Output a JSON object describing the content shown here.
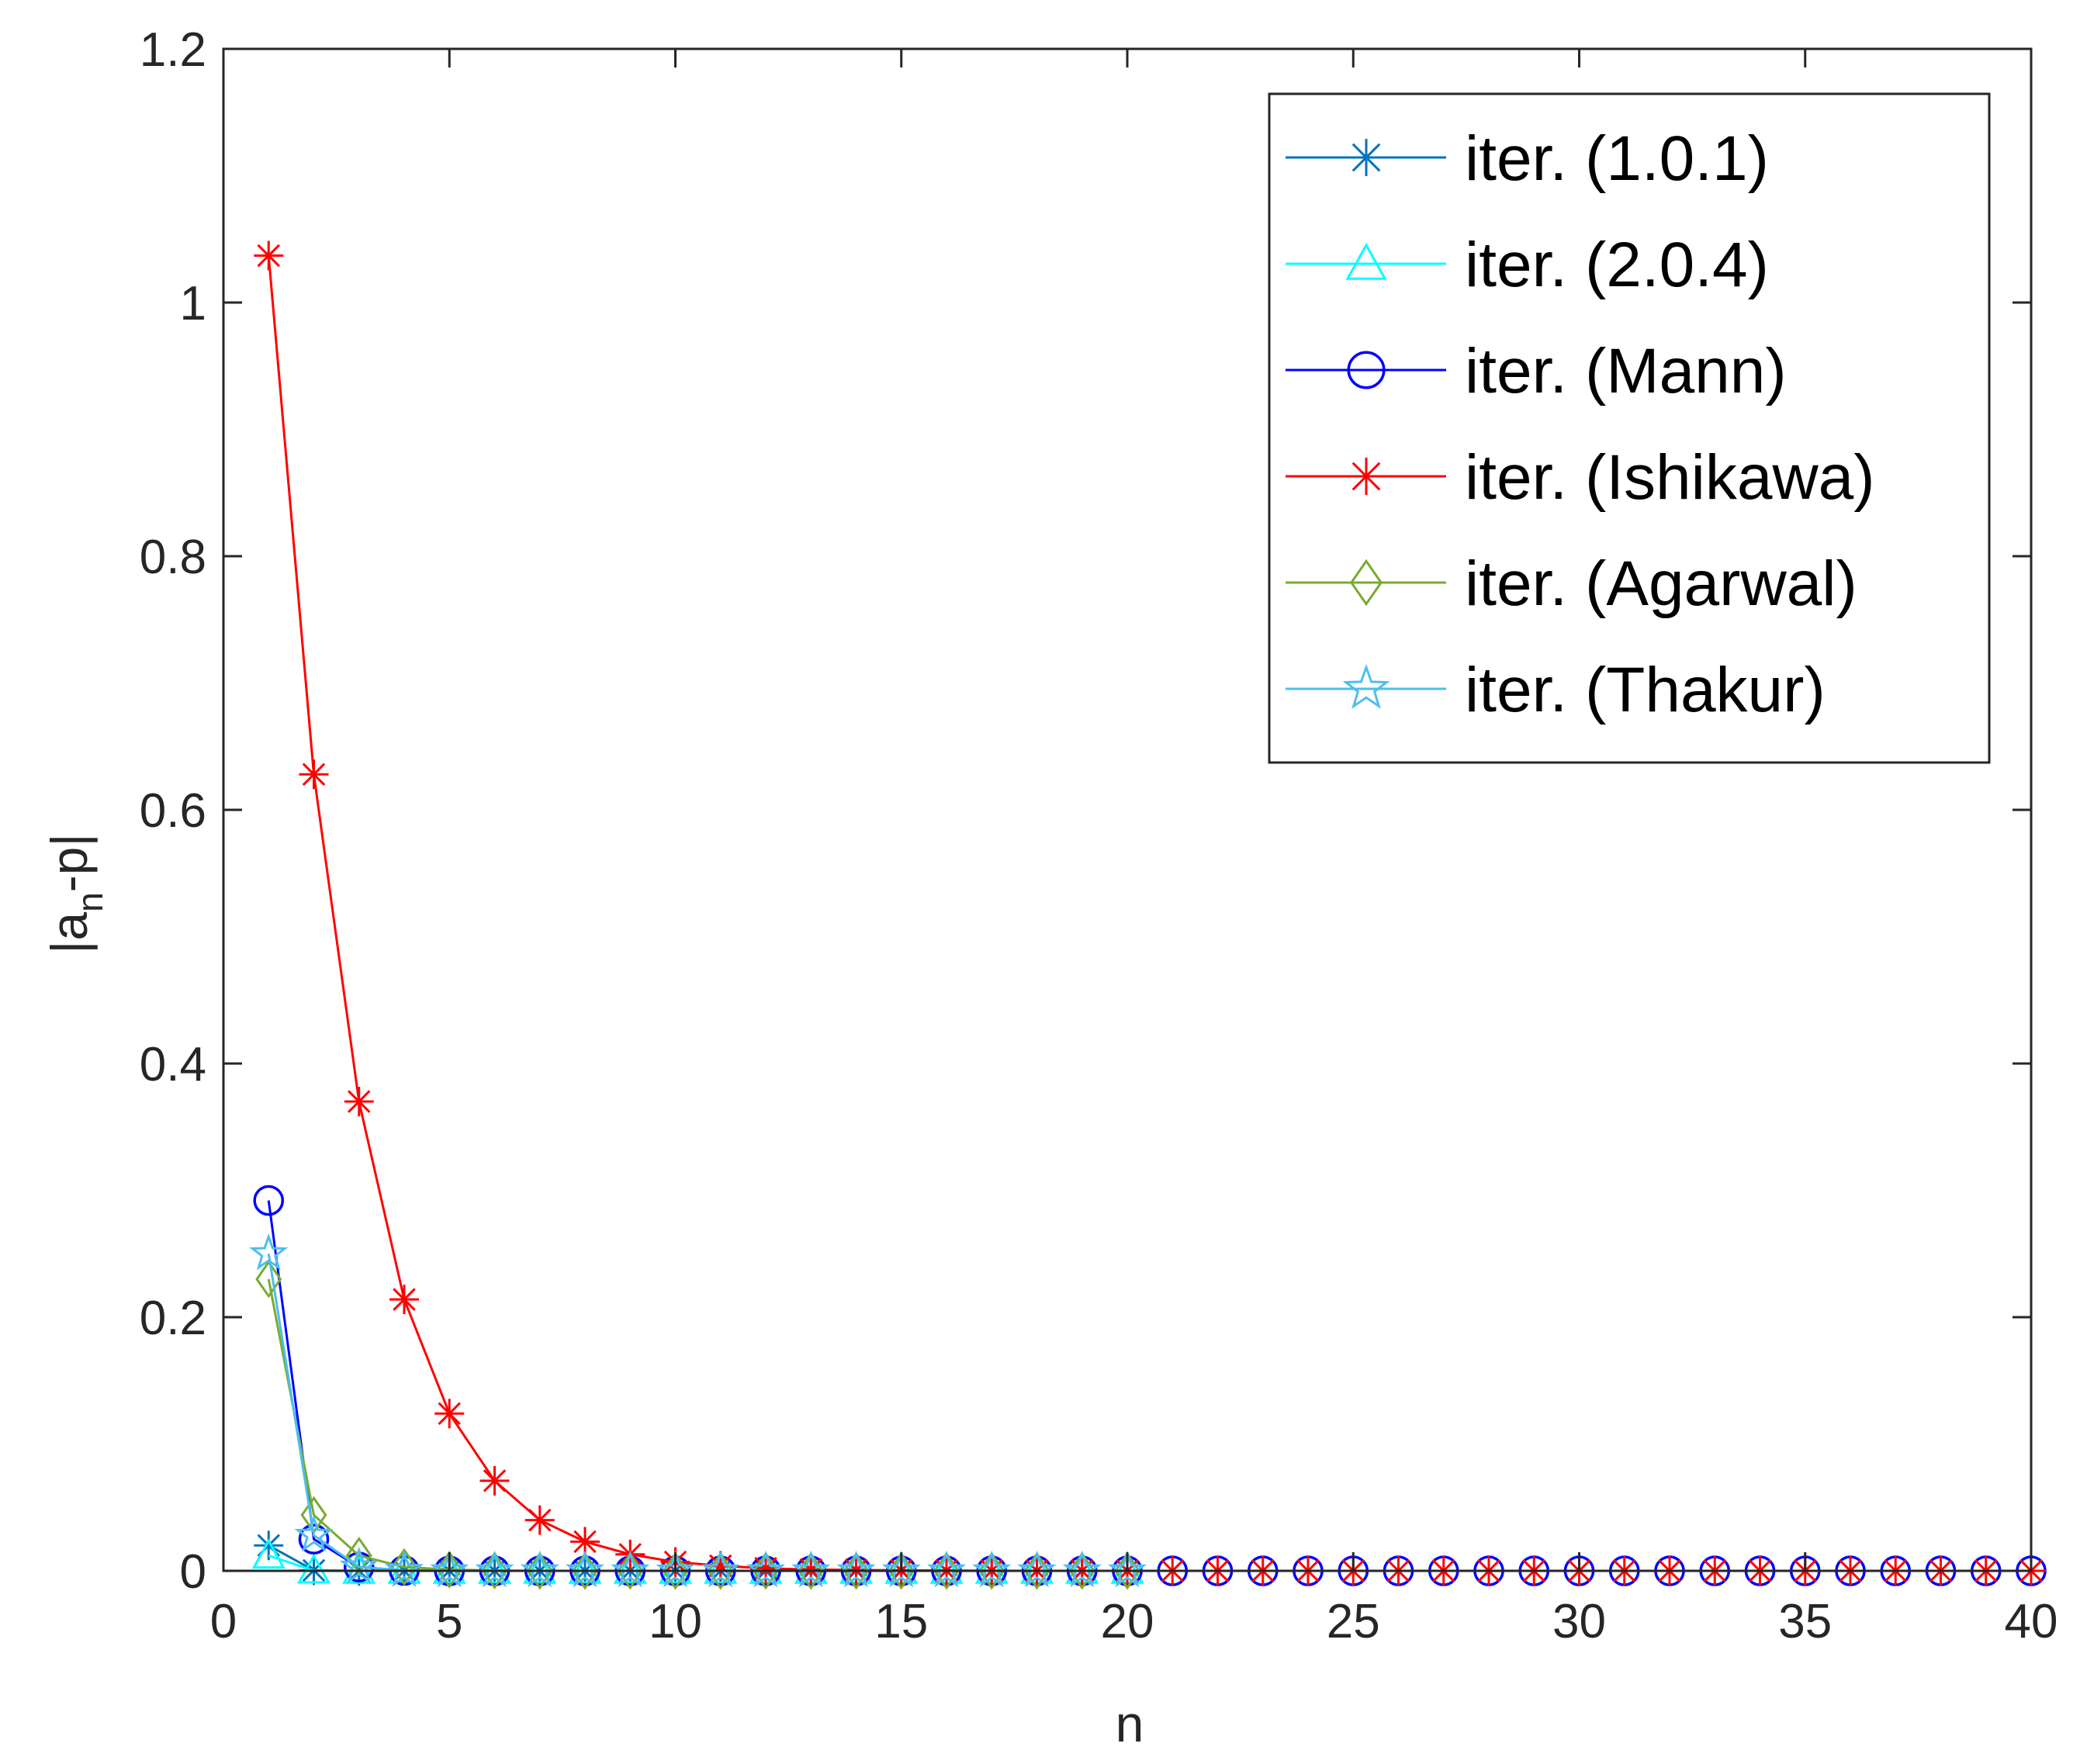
{
  "chart_data": {
    "type": "line",
    "xlabel": "n",
    "ylabel_main": "|a",
    "ylabel_sub": "n",
    "ylabel_tail": "-p|",
    "xlim": [
      0,
      40
    ],
    "ylim": [
      0,
      1.2
    ],
    "xticks": [
      0,
      5,
      10,
      15,
      20,
      25,
      30,
      35,
      40
    ],
    "xtick_labels": [
      "0",
      "5",
      "10",
      "15",
      "20",
      "25",
      "30",
      "35",
      "40"
    ],
    "yticks": [
      0,
      0.2,
      0.4,
      0.6,
      0.8,
      1.0,
      1.2
    ],
    "ytick_labels": [
      "0",
      "0.2",
      "0.4",
      "0.6",
      "0.8",
      "1",
      "1.2"
    ],
    "grid": false,
    "legend_position": "top-right",
    "series": [
      {
        "name": "iter. (1.0.1)",
        "color": "#0072BD",
        "marker": "asterisk",
        "x": [
          1,
          2,
          3,
          4,
          5,
          6,
          7,
          8,
          9,
          10,
          11,
          12,
          13,
          14,
          15,
          16,
          17,
          18,
          19,
          20
        ],
        "y": [
          0.02,
          0.0004,
          0,
          0,
          0,
          0,
          0,
          0,
          0,
          0,
          0,
          0,
          0,
          0,
          0,
          0,
          0,
          0,
          0,
          0
        ]
      },
      {
        "name": "iter. (2.0.4)",
        "color": "#00FFFF",
        "marker": "triangle",
        "x": [
          1,
          2,
          3,
          4,
          5,
          6,
          7,
          8,
          9,
          10,
          11,
          12,
          13,
          14,
          15,
          16,
          17,
          18,
          19,
          20
        ],
        "y": [
          0.012,
          0.0002,
          0,
          0,
          0,
          0,
          0,
          0,
          0,
          0,
          0,
          0,
          0,
          0,
          0,
          0,
          0,
          0,
          0,
          0
        ]
      },
      {
        "name": "iter. (Mann)",
        "color": "#0000FF",
        "marker": "circle",
        "x": [
          1,
          2,
          3,
          4,
          5,
          6,
          7,
          8,
          9,
          10,
          11,
          12,
          13,
          14,
          15,
          16,
          17,
          18,
          19,
          20,
          21,
          22,
          23,
          24,
          25,
          26,
          27,
          28,
          29,
          30,
          31,
          32,
          33,
          34,
          35,
          36,
          37,
          38,
          39,
          40
        ],
        "y": [
          0.292,
          0.025,
          0.003,
          0.0003,
          0,
          0,
          0,
          0,
          0,
          0,
          0,
          0,
          0,
          0,
          0,
          0,
          0,
          0,
          0,
          0,
          0,
          0,
          0,
          0,
          0,
          0,
          0,
          0,
          0,
          0,
          0,
          0,
          0,
          0,
          0,
          0,
          0,
          0,
          0,
          0
        ]
      },
      {
        "name": "iter. (Ishikawa)",
        "color": "#FF0000",
        "marker": "asterisk",
        "x": [
          1,
          2,
          3,
          4,
          5,
          6,
          7,
          8,
          9,
          10,
          11,
          12,
          13,
          14,
          15,
          16,
          17,
          18,
          19,
          20,
          21,
          22,
          23,
          24,
          25,
          26,
          27,
          28,
          29,
          30,
          31,
          32,
          33,
          34,
          35,
          36,
          37,
          38,
          39,
          40
        ],
        "y": [
          1.037,
          0.628,
          0.37,
          0.214,
          0.124,
          0.071,
          0.04,
          0.023,
          0.013,
          0.007,
          0.004,
          0.002,
          0.001,
          0.0007,
          0.0004,
          0.0002,
          0.0001,
          0,
          0,
          0,
          0,
          0,
          0,
          0,
          0,
          0,
          0,
          0,
          0,
          0,
          0,
          0,
          0,
          0,
          0,
          0,
          0,
          0,
          0,
          0
        ]
      },
      {
        "name": "iter. (Agarwal)",
        "color": "#77AC30",
        "marker": "diamond",
        "x": [
          1,
          2,
          3,
          4,
          5,
          6,
          7,
          8,
          9,
          10,
          11,
          12,
          13,
          14,
          15,
          16,
          17,
          18,
          19,
          20
        ],
        "y": [
          0.23,
          0.044,
          0.012,
          0.003,
          0.001,
          0.0003,
          0,
          0,
          0,
          0,
          0,
          0,
          0,
          0,
          0,
          0,
          0,
          0,
          0,
          0
        ]
      },
      {
        "name": "iter. (Thakur)",
        "color": "#4DBEEE",
        "marker": "pentagram",
        "x": [
          1,
          2,
          3,
          4,
          5,
          6,
          7,
          8,
          9,
          10,
          11,
          12,
          13,
          14,
          15,
          16,
          17,
          18,
          19,
          20
        ],
        "y": [
          0.25,
          0.028,
          0.003,
          0.0003,
          0,
          0,
          0,
          0,
          0,
          0,
          0,
          0,
          0,
          0,
          0,
          0,
          0,
          0,
          0,
          0
        ]
      }
    ]
  }
}
